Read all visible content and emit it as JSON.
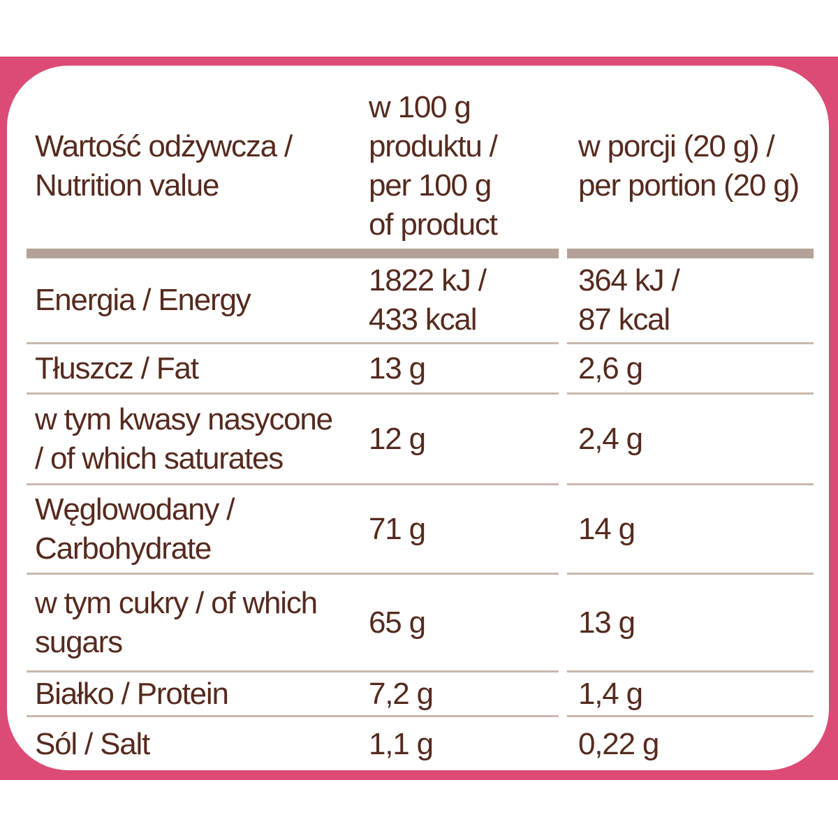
{
  "colors": {
    "accent_pink": "#dc4b75",
    "text_brown": "#552a1e",
    "header_bar_taupe": "#b3a295",
    "row_separator": "#c9b8ae",
    "background": "#ffffff"
  },
  "table": {
    "header": {
      "nutrition_value": "Wartość odżywcza /\nNutrition value",
      "per_100g": "w 100 g\nproduktu /\nper 100 g\nof product",
      "per_portion": "w porcji (20 g) /\nper portion (20 g)"
    },
    "rows": [
      {
        "label": "Energia / Energy",
        "per_100g": "1822 kJ /\n433 kcal",
        "per_portion": "364 kJ /\n87 kcal"
      },
      {
        "label": "Tłuszcz / Fat",
        "per_100g": "13 g",
        "per_portion": "2,6 g"
      },
      {
        "label": "w tym kwasy nasycone\n/ of which saturates",
        "per_100g": "12 g",
        "per_portion": "2,4 g"
      },
      {
        "label": "Węglowodany /\nCarbohydrate",
        "per_100g": "71 g",
        "per_portion": "14 g"
      },
      {
        "label": "w tym cukry / of which\nsugars",
        "per_100g": "65 g",
        "per_portion": "13 g"
      },
      {
        "label": "Białko / Protein",
        "per_100g": "7,2 g",
        "per_portion": "1,4 g"
      },
      {
        "label": "Sól / Salt",
        "per_100g": "1,1 g",
        "per_portion": "0,22 g"
      }
    ]
  }
}
